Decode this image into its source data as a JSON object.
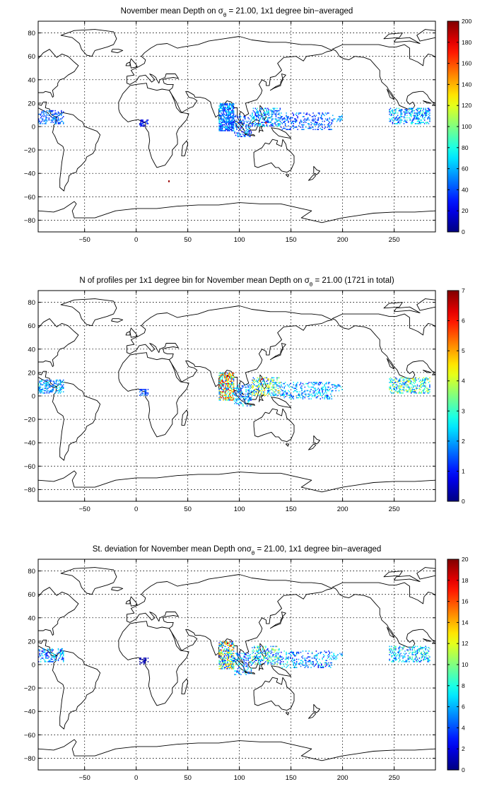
{
  "chart_data": [
    {
      "type": "heatmap",
      "title_prefix": "November mean Depth on ",
      "title_symbol": "σ",
      "title_sub": "θ",
      "title_suffix": " = 21.00, 1x1 degree bin−averaged",
      "xlim": [
        -95,
        290
      ],
      "ylim": [
        -90,
        90
      ],
      "xticks": [
        -50,
        0,
        50,
        100,
        150,
        200,
        250
      ],
      "yticks": [
        -80,
        -60,
        -40,
        -20,
        0,
        20,
        40,
        60,
        80
      ],
      "grid": true,
      "colorbar": {
        "min": 0,
        "max": 200,
        "ticks": [
          0,
          20,
          40,
          60,
          80,
          100,
          120,
          140,
          160,
          180,
          200
        ],
        "colormap": "jet"
      },
      "regions": [
        {
          "lon": [
            -95,
            -70
          ],
          "lat": [
            2,
            14
          ],
          "density": 0.4,
          "value": [
            25,
            60
          ]
        },
        {
          "lon": [
            3,
            12
          ],
          "lat": [
            0,
            6
          ],
          "density": 0.55,
          "value": [
            5,
            40
          ]
        },
        {
          "lon": [
            80,
            95
          ],
          "lat": [
            -4,
            20
          ],
          "density": 0.75,
          "value": [
            20,
            75
          ]
        },
        {
          "lon": [
            95,
            112
          ],
          "lat": [
            -9,
            10
          ],
          "density": 0.35,
          "value": [
            15,
            70
          ]
        },
        {
          "lon": [
            112,
            140
          ],
          "lat": [
            0,
            16
          ],
          "density": 0.45,
          "value": [
            20,
            90
          ]
        },
        {
          "lon": [
            140,
            190
          ],
          "lat": [
            -3,
            12
          ],
          "density": 0.3,
          "value": [
            20,
            65
          ]
        },
        {
          "lon": [
            190,
            200
          ],
          "lat": [
            4,
            10
          ],
          "density": 0.3,
          "value": [
            40,
            70
          ]
        },
        {
          "lon": [
            245,
            285
          ],
          "lat": [
            2,
            16
          ],
          "density": 0.45,
          "value": [
            20,
            90
          ]
        }
      ],
      "highlights": [
        {
          "lon": 125,
          "lat": 3,
          "value": 180
        },
        {
          "lon": 31,
          "lat": -47,
          "value": 195
        }
      ]
    },
    {
      "type": "heatmap",
      "title_prefix": "N of profiles per 1x1 degree bin for November mean Depth on ",
      "title_symbol": "σ",
      "title_sub": "θ",
      "title_suffix": " = 21.00 (1721 in total)",
      "xlim": [
        -95,
        290
      ],
      "ylim": [
        -90,
        90
      ],
      "xticks": [
        -50,
        0,
        50,
        100,
        150,
        200,
        250
      ],
      "yticks": [
        -80,
        -60,
        -40,
        -20,
        0,
        20,
        40,
        60,
        80
      ],
      "grid": true,
      "colorbar": {
        "min": 0,
        "max": 7,
        "ticks": [
          0,
          1,
          2,
          3,
          4,
          5,
          6,
          7
        ],
        "colormap": "jet"
      },
      "regions": [
        {
          "lon": [
            -95,
            -70
          ],
          "lat": [
            2,
            14
          ],
          "density": 0.4,
          "value": [
            1,
            3
          ]
        },
        {
          "lon": [
            3,
            12
          ],
          "lat": [
            0,
            6
          ],
          "density": 0.55,
          "value": [
            1,
            2
          ]
        },
        {
          "lon": [
            80,
            95
          ],
          "lat": [
            -4,
            20
          ],
          "density": 0.75,
          "value": [
            1,
            6.5
          ]
        },
        {
          "lon": [
            95,
            112
          ],
          "lat": [
            -9,
            10
          ],
          "density": 0.35,
          "value": [
            1,
            3
          ]
        },
        {
          "lon": [
            112,
            140
          ],
          "lat": [
            0,
            16
          ],
          "density": 0.45,
          "value": [
            1,
            5
          ]
        },
        {
          "lon": [
            140,
            190
          ],
          "lat": [
            -3,
            12
          ],
          "density": 0.3,
          "value": [
            1,
            3
          ]
        },
        {
          "lon": [
            190,
            200
          ],
          "lat": [
            4,
            10
          ],
          "density": 0.3,
          "value": [
            1,
            3
          ]
        },
        {
          "lon": [
            245,
            285
          ],
          "lat": [
            2,
            16
          ],
          "density": 0.45,
          "value": [
            1,
            4.5
          ]
        }
      ],
      "highlights": [
        {
          "lon": 88,
          "lat": 17,
          "value": 6.8
        },
        {
          "lon": 121,
          "lat": 14,
          "value": 6.6
        },
        {
          "lon": 263,
          "lat": 12,
          "value": 4.5
        }
      ]
    },
    {
      "type": "heatmap",
      "title_prefix": "St. deviation for November mean Depth on",
      "title_symbol": "σ",
      "title_sub": "θ",
      "title_suffix": " = 21.00, 1x1 degree bin−averaged",
      "xlim": [
        -95,
        290
      ],
      "ylim": [
        -90,
        90
      ],
      "xticks": [
        -50,
        0,
        50,
        100,
        150,
        200,
        250
      ],
      "yticks": [
        -80,
        -60,
        -40,
        -20,
        0,
        20,
        40,
        60,
        80
      ],
      "grid": true,
      "colorbar": {
        "min": 0,
        "max": 20,
        "ticks": [
          0,
          2,
          4,
          6,
          8,
          10,
          12,
          14,
          16,
          18,
          20
        ],
        "colormap": "jet"
      },
      "regions": [
        {
          "lon": [
            -95,
            -70
          ],
          "lat": [
            2,
            14
          ],
          "density": 0.35,
          "value": [
            2,
            8
          ]
        },
        {
          "lon": [
            3,
            12
          ],
          "lat": [
            0,
            6
          ],
          "density": 0.45,
          "value": [
            0,
            2
          ]
        },
        {
          "lon": [
            80,
            95
          ],
          "lat": [
            -4,
            20
          ],
          "density": 0.7,
          "value": [
            2,
            16
          ]
        },
        {
          "lon": [
            95,
            112
          ],
          "lat": [
            -9,
            10
          ],
          "density": 0.3,
          "value": [
            2,
            9
          ]
        },
        {
          "lon": [
            112,
            140
          ],
          "lat": [
            0,
            16
          ],
          "density": 0.4,
          "value": [
            2,
            12
          ]
        },
        {
          "lon": [
            140,
            190
          ],
          "lat": [
            -3,
            12
          ],
          "density": 0.28,
          "value": [
            2,
            9
          ]
        },
        {
          "lon": [
            190,
            200
          ],
          "lat": [
            4,
            10
          ],
          "density": 0.28,
          "value": [
            4,
            8
          ]
        },
        {
          "lon": [
            245,
            285
          ],
          "lat": [
            2,
            16
          ],
          "density": 0.4,
          "value": [
            3,
            10
          ]
        }
      ],
      "highlights": [
        {
          "lon": 88,
          "lat": 18,
          "value": 19
        },
        {
          "lon": 91,
          "lat": 16,
          "value": 17
        }
      ]
    }
  ]
}
